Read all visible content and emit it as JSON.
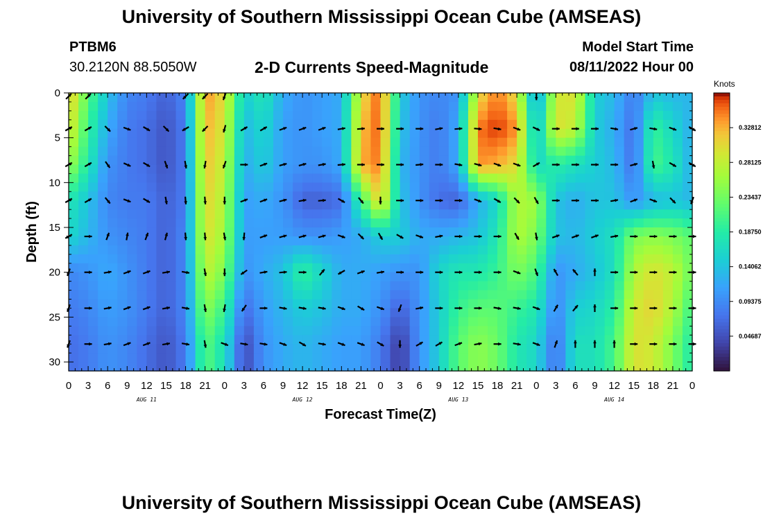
{
  "header": {
    "title": "University of Southern Mississippi Ocean Cube (AMSEAS)",
    "station": "PTBM6",
    "location": "30.2120N  88.5050W",
    "subtitle": "2-D Currents Speed-Magnitude",
    "model_label": "Model Start Time",
    "model_time": "08/11/2022 Hour 00"
  },
  "footer": {
    "title": "University of Southern Mississippi Ocean Cube (AMSEAS)"
  },
  "chart_data": {
    "type": "heatmap",
    "title": "2-D Currents Speed-Magnitude",
    "xlabel": "Forecast Time(Z)",
    "ylabel": "Depth (ft)",
    "x_tick_labels": [
      "0",
      "3",
      "6",
      "9",
      "12",
      "15",
      "18",
      "21",
      "0",
      "3",
      "6",
      "9",
      "12",
      "15",
      "18",
      "21",
      "0",
      "3",
      "6",
      "9",
      "12",
      "15",
      "18",
      "21",
      "0",
      "3",
      "6",
      "9",
      "12",
      "15",
      "18",
      "21",
      "0"
    ],
    "date_labels": [
      {
        "label": "AUG 11",
        "hour": 12
      },
      {
        "label": "AUG 12",
        "hour": 36
      },
      {
        "label": "AUG 13",
        "hour": 60
      },
      {
        "label": "AUG 14",
        "hour": 84
      }
    ],
    "xlim_hours": [
      0,
      96
    ],
    "y_ticks": [
      0,
      5,
      10,
      15,
      20,
      25,
      30
    ],
    "ylim_ft": [
      0,
      31
    ],
    "colorbar": {
      "title": "Knots",
      "ticks": [
        "0.32812",
        "0.28125",
        "0.23437",
        "0.18750",
        "0.14062",
        "0.09375",
        "0.04687"
      ],
      "tick_values": [
        0.32812,
        0.28125,
        0.23437,
        0.1875,
        0.14062,
        0.09375,
        0.04687
      ],
      "range": [
        0.0,
        0.375
      ]
    },
    "depth_levels": [
      0,
      4,
      8,
      12,
      16,
      20,
      24,
      28
    ],
    "speed_key_hours": [
      0,
      3,
      6,
      9,
      12,
      15,
      18,
      21,
      24,
      27,
      30,
      33,
      36,
      39,
      42,
      45,
      48,
      51,
      54,
      57,
      60,
      63,
      66,
      69,
      72,
      75,
      78,
      81,
      84,
      87,
      90,
      93,
      96
    ],
    "speed_series": [
      {
        "depth": 0,
        "values": [
          0.32,
          0.22,
          0.14,
          0.09,
          0.08,
          0.06,
          0.09,
          0.34,
          0.3,
          0.15,
          0.18,
          0.12,
          0.1,
          0.11,
          0.12,
          0.3,
          0.36,
          0.15,
          0.1,
          0.09,
          0.1,
          0.3,
          0.35,
          0.3,
          0.1,
          0.29,
          0.3,
          0.15,
          0.13,
          0.08,
          0.14,
          0.13,
          0.13
        ]
      },
      {
        "depth": 4,
        "values": [
          0.3,
          0.2,
          0.12,
          0.08,
          0.07,
          0.05,
          0.08,
          0.33,
          0.29,
          0.13,
          0.16,
          0.11,
          0.1,
          0.11,
          0.12,
          0.32,
          0.36,
          0.14,
          0.1,
          0.08,
          0.12,
          0.35,
          0.37,
          0.34,
          0.13,
          0.3,
          0.28,
          0.15,
          0.12,
          0.07,
          0.2,
          0.16,
          0.12
        ]
      },
      {
        "depth": 8,
        "values": [
          0.26,
          0.18,
          0.1,
          0.08,
          0.07,
          0.05,
          0.08,
          0.32,
          0.28,
          0.12,
          0.15,
          0.11,
          0.1,
          0.1,
          0.12,
          0.33,
          0.35,
          0.13,
          0.1,
          0.08,
          0.12,
          0.34,
          0.33,
          0.3,
          0.16,
          0.19,
          0.17,
          0.15,
          0.13,
          0.07,
          0.21,
          0.18,
          0.12
        ]
      },
      {
        "depth": 12,
        "values": [
          0.18,
          0.14,
          0.09,
          0.08,
          0.08,
          0.06,
          0.08,
          0.31,
          0.27,
          0.11,
          0.12,
          0.1,
          0.06,
          0.06,
          0.07,
          0.2,
          0.32,
          0.14,
          0.1,
          0.07,
          0.06,
          0.12,
          0.16,
          0.27,
          0.26,
          0.14,
          0.12,
          0.14,
          0.14,
          0.1,
          0.13,
          0.14,
          0.13
        ]
      },
      {
        "depth": 16,
        "values": [
          0.16,
          0.13,
          0.1,
          0.09,
          0.08,
          0.06,
          0.09,
          0.3,
          0.26,
          0.11,
          0.11,
          0.11,
          0.1,
          0.1,
          0.11,
          0.12,
          0.15,
          0.15,
          0.12,
          0.12,
          0.13,
          0.14,
          0.18,
          0.27,
          0.24,
          0.14,
          0.13,
          0.15,
          0.17,
          0.24,
          0.25,
          0.24,
          0.22
        ]
      },
      {
        "depth": 20,
        "values": [
          0.09,
          0.1,
          0.12,
          0.1,
          0.08,
          0.06,
          0.09,
          0.28,
          0.24,
          0.1,
          0.12,
          0.14,
          0.2,
          0.16,
          0.12,
          0.12,
          0.11,
          0.1,
          0.1,
          0.16,
          0.18,
          0.18,
          0.2,
          0.24,
          0.21,
          0.1,
          0.12,
          0.14,
          0.17,
          0.27,
          0.3,
          0.28,
          0.23
        ]
      },
      {
        "depth": 24,
        "values": [
          0.08,
          0.09,
          0.11,
          0.1,
          0.08,
          0.06,
          0.09,
          0.25,
          0.2,
          0.07,
          0.11,
          0.13,
          0.15,
          0.14,
          0.12,
          0.12,
          0.1,
          0.06,
          0.1,
          0.15,
          0.2,
          0.22,
          0.22,
          0.2,
          0.18,
          0.09,
          0.15,
          0.16,
          0.19,
          0.29,
          0.31,
          0.27,
          0.2
        ]
      },
      {
        "depth": 28,
        "values": [
          0.07,
          0.08,
          0.1,
          0.09,
          0.07,
          0.05,
          0.08,
          0.22,
          0.17,
          0.04,
          0.1,
          0.12,
          0.13,
          0.12,
          0.11,
          0.11,
          0.08,
          0.03,
          0.1,
          0.15,
          0.22,
          0.25,
          0.23,
          0.18,
          0.16,
          0.07,
          0.17,
          0.17,
          0.21,
          0.3,
          0.29,
          0.24,
          0.18
        ]
      }
    ],
    "arrow_hours": [
      0,
      3,
      6,
      9,
      12,
      15,
      18,
      21,
      24,
      27,
      30,
      33,
      36,
      39,
      42,
      45,
      48,
      51,
      54,
      57,
      60,
      63,
      66,
      69,
      72,
      75,
      78,
      81,
      84,
      87,
      90,
      93,
      96
    ],
    "arrow_directions_deg": [
      [
        45,
        45,
        -1,
        -1,
        -1,
        -1,
        225,
        225,
        200,
        -1,
        -1,
        -1,
        -1,
        -1,
        -1,
        -1,
        -1,
        -1,
        -1,
        -1,
        -1,
        -1,
        -1,
        -1,
        180,
        -1,
        -1,
        -1,
        -1,
        -1,
        -1,
        -1,
        -1
      ],
      [
        60,
        60,
        135,
        110,
        120,
        135,
        240,
        225,
        195,
        60,
        60,
        70,
        70,
        70,
        80,
        85,
        90,
        90,
        90,
        80,
        85,
        95,
        100,
        110,
        115,
        90,
        90,
        90,
        100,
        75,
        100,
        110,
        120
      ],
      [
        60,
        60,
        145,
        115,
        120,
        160,
        170,
        190,
        200,
        90,
        70,
        75,
        75,
        80,
        85,
        90,
        90,
        90,
        85,
        90,
        100,
        105,
        110,
        110,
        60,
        90,
        90,
        90,
        90,
        75,
        170,
        120,
        120
      ],
      [
        60,
        60,
        140,
        110,
        120,
        170,
        175,
        175,
        180,
        70,
        70,
        75,
        80,
        85,
        120,
        140,
        180,
        90,
        90,
        90,
        90,
        110,
        120,
        135,
        150,
        90,
        90,
        90,
        80,
        70,
        110,
        135,
        200
      ],
      [
        240,
        90,
        20,
        10,
        20,
        15,
        175,
        175,
        170,
        185,
        70,
        75,
        75,
        75,
        110,
        135,
        150,
        120,
        110,
        80,
        90,
        90,
        90,
        150,
        170,
        70,
        70,
        70,
        80,
        90,
        90,
        90,
        90
      ],
      [
        200,
        90,
        80,
        70,
        70,
        80,
        100,
        170,
        180,
        235,
        80,
        85,
        90,
        40,
        240,
        70,
        80,
        90,
        90,
        90,
        90,
        90,
        90,
        110,
        160,
        330,
        320,
        0,
        90,
        90,
        90,
        90,
        90
      ],
      [
        200,
        90,
        80,
        70,
        70,
        80,
        100,
        170,
        190,
        215,
        90,
        100,
        100,
        100,
        110,
        120,
        110,
        200,
        80,
        90,
        90,
        90,
        100,
        100,
        110,
        30,
        40,
        0,
        90,
        90,
        90,
        90,
        90
      ],
      [
        200,
        90,
        80,
        70,
        70,
        80,
        100,
        170,
        110,
        100,
        100,
        110,
        120,
        100,
        110,
        110,
        120,
        180,
        60,
        60,
        70,
        80,
        90,
        100,
        110,
        20,
        0,
        0,
        0,
        90,
        90,
        90,
        90
      ]
    ]
  }
}
